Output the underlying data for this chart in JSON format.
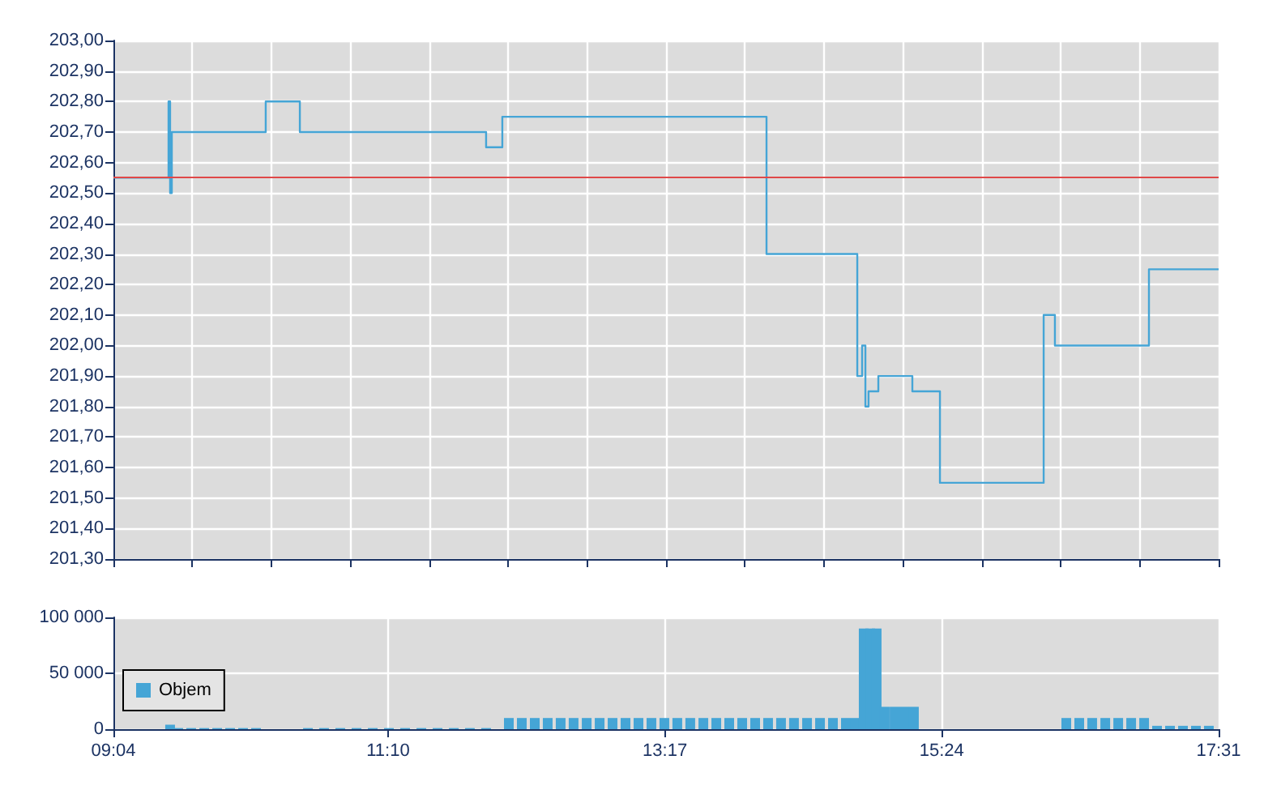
{
  "chart_data": [
    {
      "type": "step",
      "xlim": [
        9.0667,
        17.5167
      ],
      "xticks": [
        {
          "value": 9.0667,
          "label": null
        },
        {
          "value": 9.6702,
          "label": null
        },
        {
          "value": 10.2738,
          "label": null
        },
        {
          "value": 10.8774,
          "label": null
        },
        {
          "value": 11.481,
          "label": null
        },
        {
          "value": 12.0845,
          "label": null
        },
        {
          "value": 12.6881,
          "label": null
        },
        {
          "value": 13.2917,
          "label": null
        },
        {
          "value": 13.8952,
          "label": null
        },
        {
          "value": 14.4988,
          "label": null
        },
        {
          "value": 15.1024,
          "label": null
        },
        {
          "value": 15.706,
          "label": null
        },
        {
          "value": 16.3095,
          "label": null
        },
        {
          "value": 16.9131,
          "label": null
        },
        {
          "value": 17.5167,
          "label": null
        }
      ],
      "ylim": [
        201.3,
        203.0
      ],
      "yticks": [
        {
          "value": 201.3,
          "label": "201,30"
        },
        {
          "value": 201.4,
          "label": "201,40"
        },
        {
          "value": 201.5,
          "label": "201,50"
        },
        {
          "value": 201.6,
          "label": "201,60"
        },
        {
          "value": 201.7,
          "label": "201,70"
        },
        {
          "value": 201.8,
          "label": "201,80"
        },
        {
          "value": 201.9,
          "label": "201,90"
        },
        {
          "value": 202.0,
          "label": "202,00"
        },
        {
          "value": 202.1,
          "label": "202,10"
        },
        {
          "value": 202.2,
          "label": "202,20"
        },
        {
          "value": 202.3,
          "label": "202,30"
        },
        {
          "value": 202.4,
          "label": "202,40"
        },
        {
          "value": 202.5,
          "label": "202,50"
        },
        {
          "value": 202.6,
          "label": "202,60"
        },
        {
          "value": 202.7,
          "label": "202,70"
        },
        {
          "value": 202.8,
          "label": "202,80"
        },
        {
          "value": 202.9,
          "label": "202,90"
        },
        {
          "value": 203.0,
          "label": "203,00"
        }
      ],
      "tick_labels": "y",
      "grid": true,
      "series": [
        {
          "color": "#45a5d6",
          "x": [
            9.0667,
            9.488,
            9.5,
            9.513,
            10.231,
            10.492,
            11.916,
            12.04,
            14.06,
            14.754,
            14.791,
            14.816,
            14.84,
            14.915,
            15.175,
            15.386,
            16.179,
            16.265,
            16.984,
            17.5167
          ],
          "values": [
            202.55,
            202.8,
            202.5,
            202.7,
            202.8,
            202.7,
            202.65,
            202.75,
            202.3,
            201.9,
            202.0,
            201.8,
            201.85,
            201.9,
            201.85,
            201.55,
            202.1,
            202.0,
            202.25,
            202.25
          ]
        }
      ],
      "ref_lines": [
        {
          "axis": "y",
          "value": 202.55,
          "color": "#e04848"
        }
      ]
    },
    {
      "type": "bar",
      "xlim": [
        9.0667,
        17.5167
      ],
      "xticks": [
        {
          "value": 9.0667,
          "label": "09:04"
        },
        {
          "value": 11.1667,
          "label": "11:10"
        },
        {
          "value": 13.2833,
          "label": "13:17"
        },
        {
          "value": 15.4,
          "label": "15:24"
        },
        {
          "value": 17.5167,
          "label": "17:31"
        }
      ],
      "ylim": [
        0,
        100000
      ],
      "yticks": [
        0,
        {
          "value": 50000,
          "label": "50 000"
        },
        {
          "value": 100000,
          "label": "100 000"
        }
      ],
      "grid": true,
      "legend": "left",
      "series": [
        {
          "name": "Objem",
          "color": "#45a5d6",
          "x": [
            9.5,
            9.562,
            9.661,
            9.761,
            9.86,
            9.959,
            10.058,
            10.157,
            10.554,
            10.677,
            10.801,
            10.925,
            11.049,
            11.173,
            11.297,
            11.421,
            11.545,
            11.669,
            11.792,
            11.916,
            12.09,
            12.189,
            12.288,
            12.387,
            12.486,
            12.585,
            12.685,
            12.784,
            12.883,
            12.982,
            13.081,
            13.18,
            13.279,
            13.378,
            13.477,
            13.577,
            13.676,
            13.775,
            13.874,
            13.973,
            14.072,
            14.171,
            14.27,
            14.37,
            14.469,
            14.568,
            14.667,
            14.741,
            14.803,
            14.853,
            14.902,
            14.964,
            15.039,
            15.113,
            15.187,
            16.352,
            16.451,
            16.55,
            16.65,
            16.749,
            16.848,
            16.947,
            17.046,
            17.145,
            17.244,
            17.343,
            17.442
          ],
          "values": [
            4000,
            1000,
            1000,
            1000,
            1000,
            1000,
            1000,
            1000,
            1000,
            1000,
            1000,
            1000,
            1000,
            1000,
            1000,
            1000,
            1000,
            1000,
            1000,
            1000,
            10000,
            10000,
            10000,
            10000,
            10000,
            10000,
            10000,
            10000,
            10000,
            10000,
            10000,
            10000,
            10000,
            10000,
            10000,
            10000,
            10000,
            10000,
            10000,
            10000,
            10000,
            10000,
            10000,
            10000,
            10000,
            10000,
            10000,
            10000,
            90000,
            90000,
            90000,
            20000,
            20000,
            20000,
            20000,
            10000,
            10000,
            10000,
            10000,
            10000,
            10000,
            10000,
            3000,
            3000,
            3000,
            3000,
            3000
          ]
        }
      ]
    }
  ]
}
